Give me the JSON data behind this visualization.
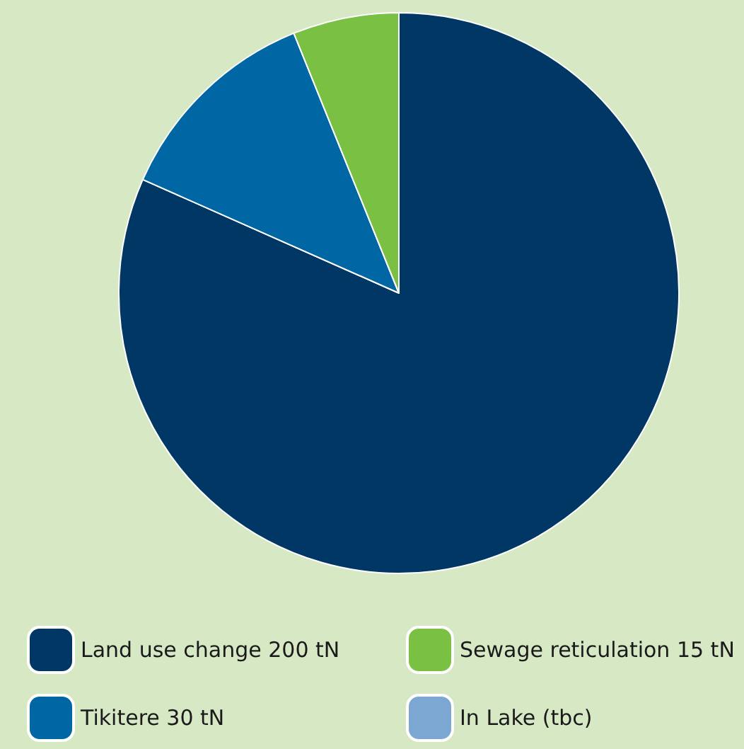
{
  "chart_data": {
    "type": "pie",
    "categories": [
      "Land use change 200 tN",
      "Tikitere 30 tN",
      "Sewage reticulation 15 tN",
      "In Lake (tbc)"
    ],
    "values": [
      200,
      30,
      15,
      null
    ],
    "colors": [
      "#003764",
      "#0066a4",
      "#7ac143",
      "#7ba7d2"
    ],
    "legend": "bottom"
  }
}
